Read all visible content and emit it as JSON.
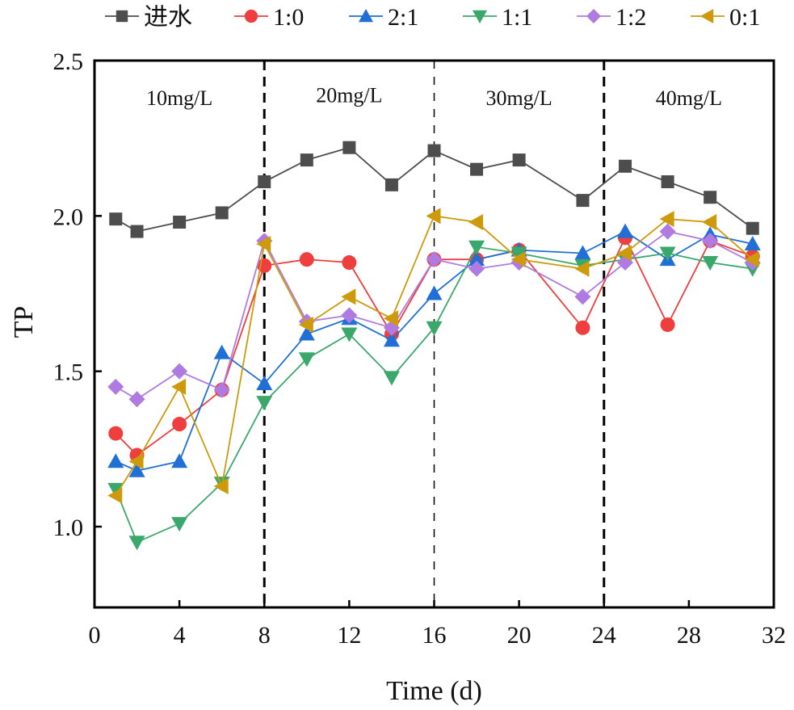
{
  "chart_data": {
    "type": "line",
    "title": "",
    "xlabel": "Time (d)",
    "ylabel": "TP",
    "xlim": [
      0,
      32
    ],
    "ylim": [
      0.74,
      2.5
    ],
    "xticks": [
      0,
      4,
      8,
      12,
      16,
      20,
      24,
      28,
      32
    ],
    "xtick_labels": [
      "0",
      "4",
      "8",
      "12",
      "16",
      "20",
      "24",
      "28",
      "32"
    ],
    "yticks": [
      1.0,
      1.5,
      2.0,
      2.5
    ],
    "ytick_labels": [
      "1.0",
      "1.5",
      "2.0",
      "2.5"
    ],
    "grid": false,
    "legend_position": "top",
    "x": [
      1,
      2,
      4,
      6,
      8,
      10,
      12,
      14,
      16,
      18,
      20,
      23,
      25,
      27,
      29,
      31
    ],
    "series": [
      {
        "name": "进水",
        "color": "#4d4d4d",
        "marker": "square",
        "values": [
          1.99,
          1.95,
          1.98,
          2.01,
          2.11,
          2.18,
          2.22,
          2.1,
          2.21,
          2.15,
          2.18,
          2.05,
          2.16,
          2.11,
          2.06,
          1.96
        ]
      },
      {
        "name": "1:0",
        "color": "#ef3e3e",
        "marker": "circle",
        "values": [
          1.3,
          1.23,
          1.33,
          1.44,
          1.84,
          1.86,
          1.85,
          1.62,
          1.86,
          1.86,
          1.89,
          1.64,
          1.93,
          1.65,
          1.92,
          1.87
        ]
      },
      {
        "name": "2:1",
        "color": "#1f6fd6",
        "marker": "triangle-up",
        "values": [
          1.21,
          1.18,
          1.21,
          1.56,
          1.46,
          1.62,
          1.67,
          1.6,
          1.75,
          1.86,
          1.89,
          1.88,
          1.95,
          1.86,
          1.94,
          1.91
        ]
      },
      {
        "name": "1:1",
        "color": "#3aa86b",
        "marker": "triangle-down",
        "values": [
          1.12,
          0.95,
          1.01,
          1.14,
          1.4,
          1.54,
          1.62,
          1.48,
          1.64,
          1.9,
          1.88,
          1.84,
          1.86,
          1.88,
          1.85,
          1.83
        ]
      },
      {
        "name": "1:2",
        "color": "#b07be0",
        "marker": "diamond",
        "values": [
          1.45,
          1.41,
          1.5,
          1.44,
          1.92,
          1.66,
          1.68,
          1.64,
          1.86,
          1.83,
          1.85,
          1.74,
          1.85,
          1.95,
          1.92,
          1.85
        ]
      },
      {
        "name": "0:1",
        "color": "#cc9a0a",
        "marker": "triangle-left",
        "values": [
          1.1,
          1.21,
          1.45,
          1.13,
          1.91,
          1.65,
          1.74,
          1.67,
          2.0,
          1.98,
          1.86,
          1.83,
          1.88,
          1.99,
          1.98,
          1.86
        ]
      }
    ],
    "vlines": [
      {
        "x": 8,
        "style": "dashed-bold"
      },
      {
        "x": 16,
        "style": "dashed-thin"
      },
      {
        "x": 24,
        "style": "dashed-bold"
      }
    ],
    "annotations": [
      {
        "text": "10mg/L",
        "x": 4,
        "y": 2.38
      },
      {
        "text": "20mg/L",
        "x": 12,
        "y": 2.39
      },
      {
        "text": "30mg/L",
        "x": 20,
        "y": 2.38
      },
      {
        "text": "40mg/L",
        "x": 28,
        "y": 2.38
      }
    ]
  }
}
